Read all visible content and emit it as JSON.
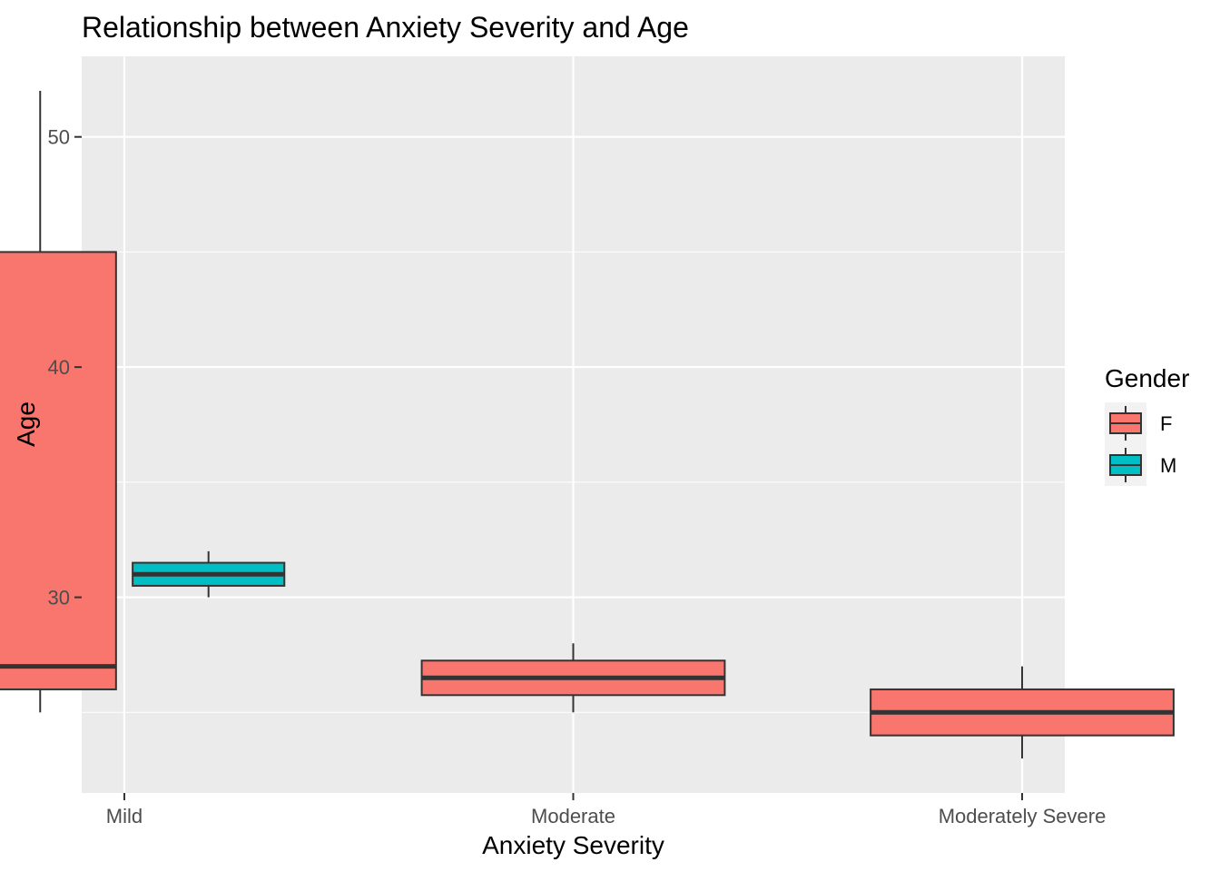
{
  "chart_data": {
    "type": "boxplot",
    "title": "Relationship between Anxiety Severity and Age",
    "xlabel": "Anxiety Severity",
    "ylabel": "Age",
    "categories": [
      "Mild",
      "Moderate",
      "Moderately Severe"
    ],
    "y_ticks": [
      30,
      40,
      50
    ],
    "ylim": [
      21.5,
      53.5
    ],
    "grid": true,
    "legend": {
      "title": "Gender",
      "placement": "right",
      "entries": [
        {
          "label": "F",
          "color": "#F8766D"
        },
        {
          "label": "M",
          "color": "#00BFC4"
        }
      ]
    },
    "boxes": [
      {
        "category": "Mild",
        "group": "F",
        "color": "#F8766D",
        "min": 25,
        "q1": 26,
        "median": 27,
        "q3": 45,
        "max": 52
      },
      {
        "category": "Mild",
        "group": "M",
        "color": "#00BFC4",
        "min": 30,
        "q1": 30.5,
        "median": 31,
        "q3": 31.5,
        "max": 32
      },
      {
        "category": "Moderate",
        "group": "F",
        "color": "#F8766D",
        "min": 25,
        "q1": 25.75,
        "median": 26.5,
        "q3": 27.25,
        "max": 28
      },
      {
        "category": "Moderately Severe",
        "group": "F",
        "color": "#F8766D",
        "min": 23,
        "q1": 24,
        "median": 25,
        "q3": 26,
        "max": 27
      }
    ],
    "colors": {
      "panel_bg": "#EBEBEB",
      "grid": "#FFFFFF",
      "box_outline": "#333333"
    }
  }
}
